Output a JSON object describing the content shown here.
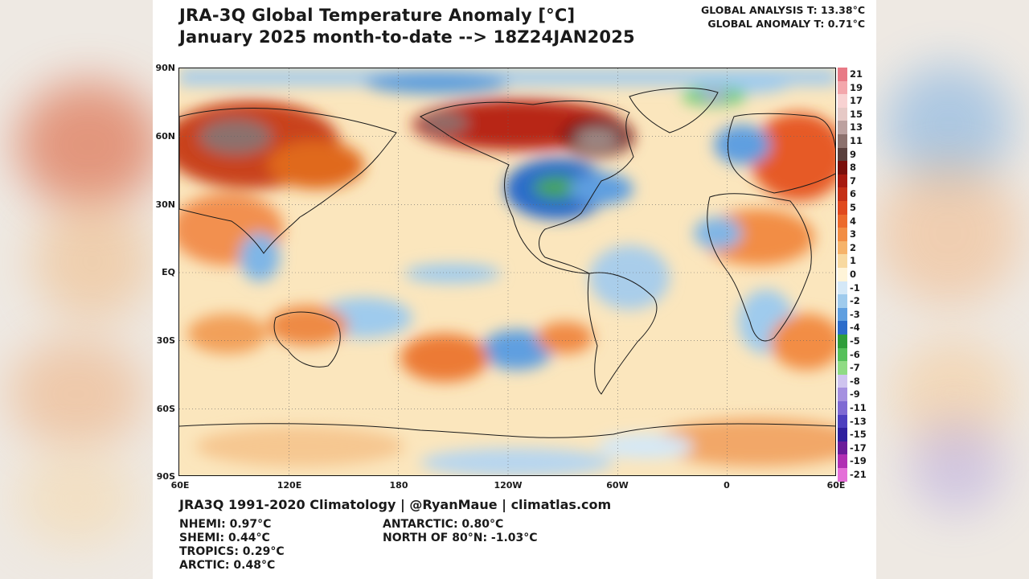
{
  "title_line1": "JRA-3Q Global Temperature Anomaly [°C]",
  "title_line2": "January 2025 month-to-date --> 18Z24JAN2025",
  "global_analysis": "GLOBAL ANALYSIS T: 13.38°C",
  "global_anomaly": "GLOBAL ANOMALY T: 0.71°C",
  "lat_labels": [
    "90N",
    "60N",
    "30N",
    "EQ",
    "30S",
    "60S",
    "90S"
  ],
  "lon_labels": [
    "60E",
    "120E",
    "180",
    "120W",
    "60W",
    "0",
    "60E"
  ],
  "colorbar": {
    "labels": [
      "21",
      "19",
      "17",
      "15",
      "13",
      "11",
      "9",
      "8",
      "7",
      "6",
      "5",
      "4",
      "3",
      "2",
      "1",
      "0",
      "-1",
      "-2",
      "-3",
      "-4",
      "-5",
      "-6",
      "-7",
      "-8",
      "-9",
      "-11",
      "-13",
      "-15",
      "-17",
      "-19",
      "-21"
    ],
    "colors": [
      "#e87a86",
      "#f3a7ac",
      "#f8d2d2",
      "#e6c9c6",
      "#bca19f",
      "#8c716d",
      "#5a3f3c",
      "#7a0f0b",
      "#a7190f",
      "#c52f16",
      "#e0491e",
      "#ec6a2c",
      "#f28d44",
      "#f6b36a",
      "#f8d9a0",
      "#fff4d8",
      "#d4e8f7",
      "#9fcbed",
      "#5f9fe0",
      "#2c6cca",
      "#2f9e3a",
      "#55c05a",
      "#8fdb84",
      "#cfc4ef",
      "#a590e0",
      "#7f6ad3",
      "#4d3fbf",
      "#2f1f9e",
      "#6b1c9a",
      "#b02fb3",
      "#e46fd8"
    ]
  },
  "credit": "JRA3Q 1991-2020 Climatology | @RyanMaue | climatlas.com",
  "stats": {
    "nhemi": "NHEMI: 0.97°C",
    "shemi": "SHEMI: 0.44°C",
    "tropics": "TROPICS: 0.29°C",
    "arctic": "ARCTIC: 0.48°C",
    "antarctic": "ANTARCTIC: 0.80°C",
    "north80": "NORTH OF 80°N: -1.03°C"
  }
}
